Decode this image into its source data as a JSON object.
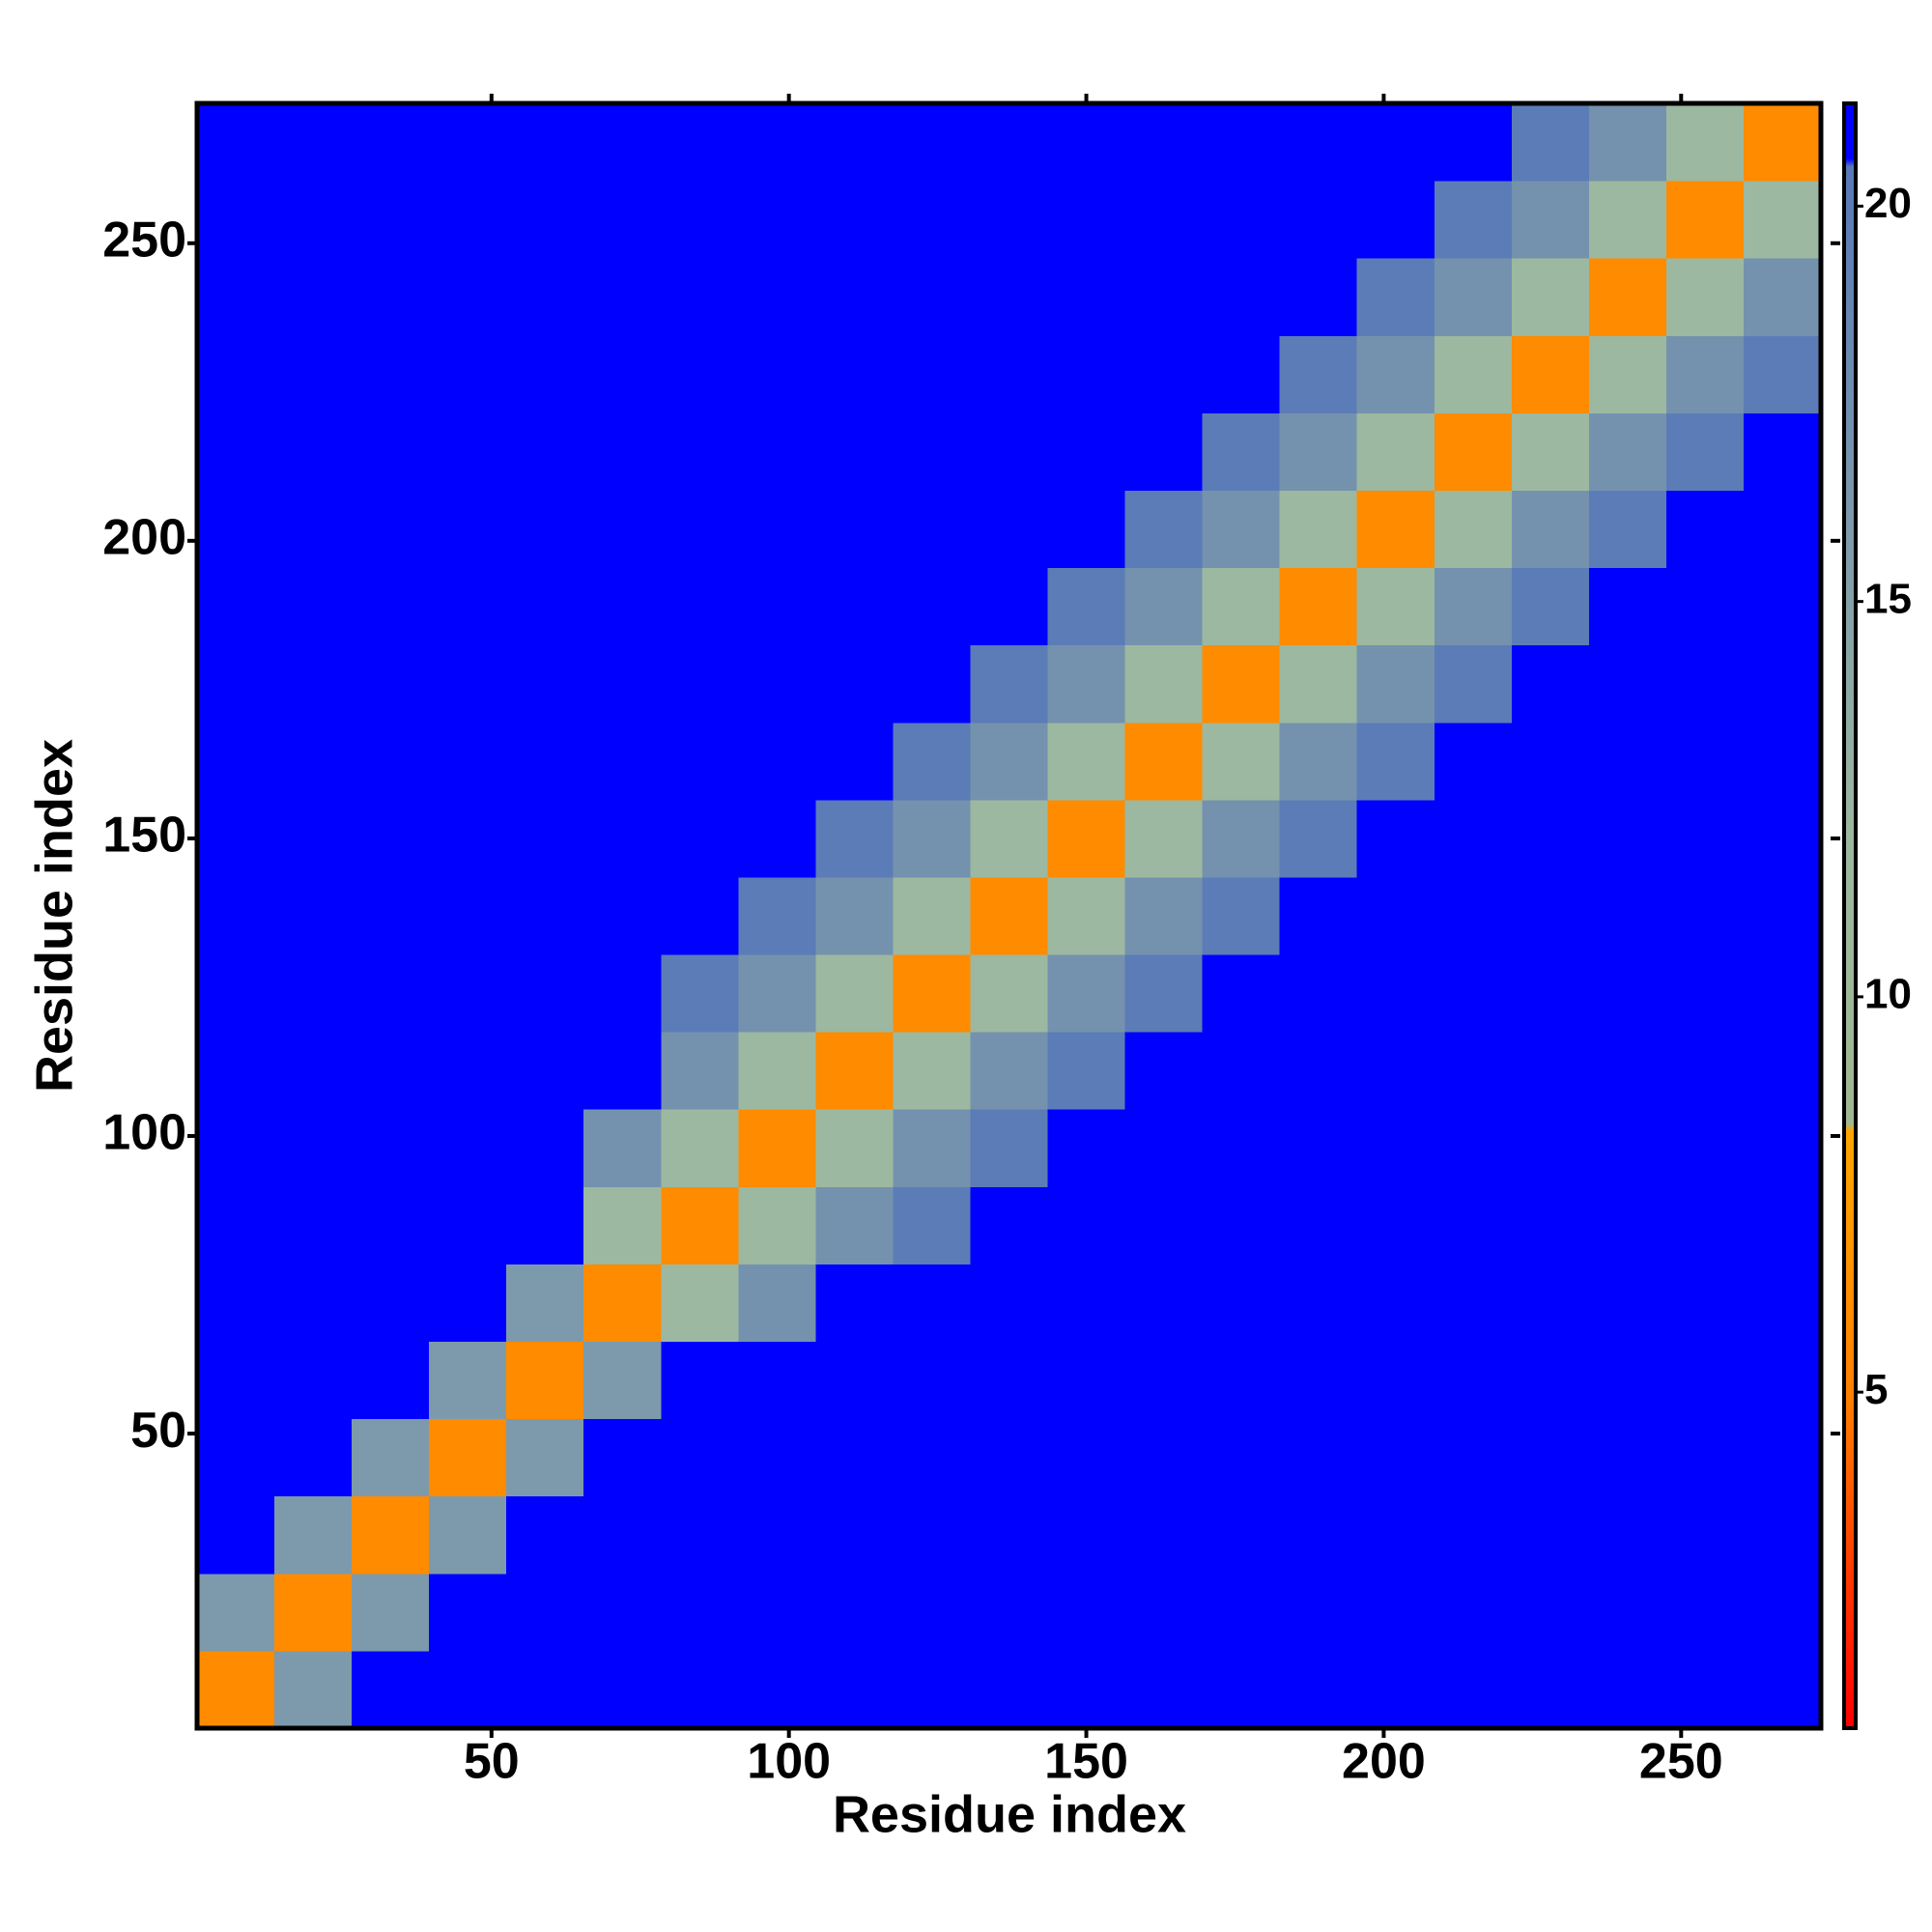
{
  "chart_data": {
    "type": "heatmap",
    "xlabel": "Residue index",
    "ylabel": "Residue index",
    "xlim": [
      0.5,
      273.5
    ],
    "ylim": [
      0.5,
      273.5
    ],
    "xticks": [
      50,
      100,
      150,
      200,
      250
    ],
    "yticks": [
      50,
      100,
      150,
      200,
      250
    ],
    "zlim": [
      0.75,
      21.3
    ],
    "zticks": [
      5,
      10,
      15,
      20
    ],
    "colorscale": [
      [
        0.75,
        "#ff0000"
      ],
      [
        5,
        "#ff8000"
      ],
      [
        8.3,
        "#ffa500"
      ],
      [
        8.4,
        "#a0b890"
      ],
      [
        12,
        "#9cb8a0"
      ],
      [
        20.5,
        "#5878b8"
      ],
      [
        20.6,
        "#0000ff"
      ],
      [
        21.3,
        "#0000ff"
      ]
    ],
    "z": [
      [
        6,
        16,
        21,
        21,
        21,
        21,
        21,
        21,
        21,
        21,
        21,
        21,
        21,
        21,
        21,
        21,
        21,
        21,
        21,
        21,
        21
      ],
      [
        16,
        6,
        16,
        21,
        21,
        21,
        21,
        21,
        21,
        21,
        21,
        21,
        21,
        21,
        21,
        21,
        21,
        21,
        21,
        21,
        21
      ],
      [
        21,
        16,
        6,
        16,
        21,
        21,
        21,
        21,
        21,
        21,
        21,
        21,
        21,
        21,
        21,
        21,
        21,
        21,
        21,
        21,
        21
      ],
      [
        21,
        21,
        16,
        6,
        16,
        21,
        21,
        21,
        21,
        21,
        21,
        21,
        21,
        21,
        21,
        21,
        21,
        21,
        21,
        21,
        21
      ],
      [
        21,
        21,
        21,
        16,
        6,
        16,
        21,
        21,
        21,
        21,
        21,
        21,
        21,
        21,
        21,
        21,
        21,
        21,
        21,
        21,
        21
      ],
      [
        21,
        21,
        21,
        21,
        16,
        6,
        12,
        17,
        21,
        21,
        21,
        21,
        21,
        21,
        21,
        21,
        21,
        21,
        21,
        21,
        21
      ],
      [
        21,
        21,
        21,
        21,
        21,
        12,
        6,
        12,
        17,
        20,
        21,
        21,
        21,
        21,
        21,
        21,
        21,
        21,
        21,
        21,
        21
      ],
      [
        21,
        21,
        21,
        21,
        21,
        17,
        12,
        6,
        12,
        17,
        20,
        21,
        21,
        21,
        21,
        21,
        21,
        21,
        21,
        21,
        21
      ],
      [
        21,
        21,
        21,
        21,
        21,
        21,
        17,
        12,
        6,
        12,
        17,
        20,
        21,
        21,
        21,
        21,
        21,
        21,
        21,
        21,
        21
      ],
      [
        21,
        21,
        21,
        21,
        21,
        21,
        20,
        17,
        12,
        6,
        12,
        17,
        20,
        21,
        21,
        21,
        21,
        21,
        21,
        21,
        21
      ],
      [
        21,
        21,
        21,
        21,
        21,
        21,
        21,
        20,
        17,
        12,
        6,
        12,
        17,
        20,
        21,
        21,
        21,
        21,
        21,
        21,
        21
      ],
      [
        21,
        21,
        21,
        21,
        21,
        21,
        21,
        21,
        20,
        17,
        12,
        6,
        12,
        17,
        20,
        21,
        21,
        21,
        21,
        21,
        21
      ],
      [
        21,
        21,
        21,
        21,
        21,
        21,
        21,
        21,
        21,
        20,
        17,
        12,
        6,
        12,
        17,
        20,
        21,
        21,
        21,
        21,
        21
      ],
      [
        21,
        21,
        21,
        21,
        21,
        21,
        21,
        21,
        21,
        21,
        20,
        17,
        12,
        6,
        12,
        17,
        20,
        21,
        21,
        21,
        21
      ],
      [
        21,
        21,
        21,
        21,
        21,
        21,
        21,
        21,
        21,
        21,
        21,
        20,
        17,
        12,
        6,
        12,
        17,
        20,
        21,
        21,
        21
      ],
      [
        21,
        21,
        21,
        21,
        21,
        21,
        21,
        21,
        21,
        21,
        21,
        21,
        20,
        17,
        12,
        6,
        12,
        17,
        20,
        21,
        21
      ],
      [
        21,
        21,
        21,
        21,
        21,
        21,
        21,
        21,
        21,
        21,
        21,
        21,
        21,
        20,
        17,
        12,
        6,
        12,
        17,
        20,
        21
      ],
      [
        21,
        21,
        21,
        21,
        21,
        21,
        21,
        21,
        21,
        21,
        21,
        21,
        21,
        21,
        20,
        17,
        12,
        6,
        12,
        17,
        20
      ],
      [
        21,
        21,
        21,
        21,
        21,
        21,
        21,
        21,
        21,
        21,
        21,
        21,
        21,
        21,
        21,
        20,
        17,
        12,
        6,
        12,
        17
      ],
      [
        21,
        21,
        21,
        21,
        21,
        21,
        21,
        21,
        21,
        21,
        21,
        21,
        21,
        21,
        21,
        21,
        20,
        17,
        12,
        6,
        12
      ],
      [
        21,
        21,
        21,
        21,
        21,
        21,
        21,
        21,
        21,
        21,
        21,
        21,
        21,
        21,
        21,
        21,
        21,
        20,
        17,
        12,
        6
      ]
    ]
  }
}
